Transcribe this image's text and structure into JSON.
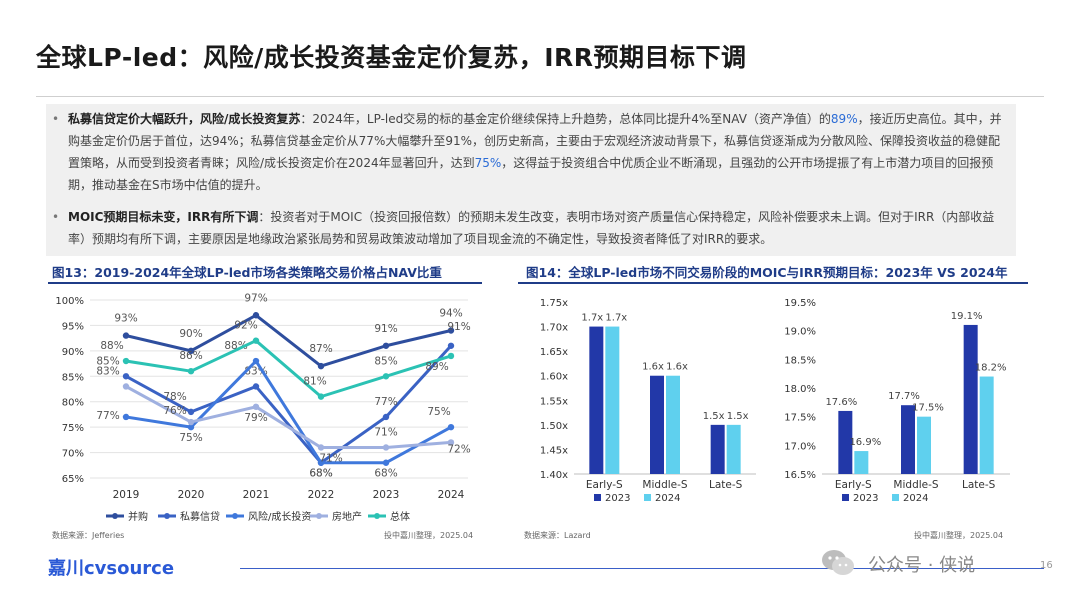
{
  "page": {
    "title": "全球LP-led：风险/成长投资基金定价复苏，IRR预期目标下调",
    "page_number": "16"
  },
  "summary": {
    "bullet1": {
      "lead": "私募信贷定价大幅跃升，风险/成长投资复苏",
      "p1": "：2024年，LP-led交易的标的基金定价继续保持上升趋势，总体同比提升4%至NAV（资产净值）的",
      "v1": "89%",
      "p2": "，接近历史高位。其中，并购基金定价仍居于首位，达94%；私募信贷基金定价从77%大幅攀升至91%，创历史新高，主要由于宏观经济波动背景下，私募信贷逐渐成为分散风险、保障投资收益的稳健配置策略，从而受到投资者青睐；风险/成长投资定价在2024年显著回升，达到",
      "v2": "75%",
      "p3": "，这得益于投资组合中优质企业不断涌现，且强劲的公开市场提振了有上市潜力项目的回报预期，推动基金在S市场中估值的提升。"
    },
    "bullet2": {
      "lead": "MOIC预期目标未变，IRR有所下调",
      "p1": "：投资者对于MOIC（投资回报倍数）的预期未发生改变，表明市场对资产质量信心保持稳定，风险补偿要求未上调。但对于IRR（内部收益率）预期均有所下调，主要原因是地缘政治紧张局势和贸易政策波动增加了项目现金流的不确定性，导致投资者降低了对IRR的要求。"
    }
  },
  "figure13": {
    "title": "图13：2019-2024年全球LP-led市场各类策略交易价格占NAV比重",
    "source": "数据来源：Jefferies",
    "credit": "投中嘉川整理，2025.04"
  },
  "figure14": {
    "title": "图14：全球LP-led市场不同交易阶段的MOIC与IRR预期目标：2023年 VS 2024年",
    "source": "数据来源：Lazard",
    "credit": "投中嘉川整理，2025.04"
  },
  "footer": {
    "logo": "嘉川cvsource",
    "watermark": "公众号 · 侠说"
  },
  "chart_data": [
    {
      "type": "line",
      "x": [
        "2019",
        "2020",
        "2021",
        "2022",
        "2023",
        "2024"
      ],
      "ylim": [
        65,
        100
      ],
      "yticks": [
        "65%",
        "70%",
        "75%",
        "80%",
        "85%",
        "90%",
        "95%",
        "100%"
      ],
      "grid": true,
      "legend_position": "bottom",
      "series": [
        {
          "name": "并购",
          "color": "#2e4e9e",
          "values": [
            93,
            90,
            97,
            87,
            91,
            94
          ],
          "labels": [
            "93%",
            "90%",
            "97%",
            "87%",
            "91%",
            "94%"
          ]
        },
        {
          "name": "私募信贷",
          "color": "#3a62c4",
          "values": [
            85,
            78,
            83,
            68,
            77,
            91
          ],
          "labels": [
            "85%",
            "78%",
            "83%",
            "68%",
            "77%",
            "91%"
          ]
        },
        {
          "name": "风险/成长投资",
          "color": "#3f78dc",
          "values": [
            77,
            75,
            88,
            68,
            68,
            75
          ],
          "labels": [
            "77%",
            "75%",
            "88%",
            "68%",
            "68%",
            "75%"
          ]
        },
        {
          "name": "房地产",
          "color": "#9fb0e0",
          "values": [
            83,
            76,
            79,
            71,
            71,
            72
          ],
          "labels": [
            "83%",
            "76%",
            "79%",
            "71%",
            "71%",
            "72%"
          ]
        },
        {
          "name": "总体",
          "color": "#2bc2b4",
          "values": [
            88,
            86,
            92,
            81,
            85,
            89
          ],
          "labels": [
            "88%",
            "86%",
            "92%",
            "81%",
            "85%",
            "89%"
          ]
        }
      ]
    },
    {
      "type": "bar",
      "categories": [
        "Early-S",
        "Middle-S",
        "Late-S"
      ],
      "ylim": [
        1.4,
        1.75
      ],
      "yticks": [
        "1.40x",
        "1.45x",
        "1.50x",
        "1.55x",
        "1.60x",
        "1.65x",
        "1.70x",
        "1.75x"
      ],
      "legend_position": "bottom",
      "series": [
        {
          "name": "2023",
          "color": "#2238a8",
          "values": [
            1.7,
            1.6,
            1.5
          ],
          "labels": [
            "1.7x",
            "1.6x",
            "1.5x"
          ]
        },
        {
          "name": "2024",
          "color": "#5fd0ee",
          "values": [
            1.7,
            1.6,
            1.5
          ],
          "labels": [
            "1.7x",
            "1.6x",
            "1.5x"
          ]
        }
      ]
    },
    {
      "type": "bar",
      "categories": [
        "Early-S",
        "Middle-S",
        "Late-S"
      ],
      "ylim": [
        16.5,
        19.5
      ],
      "yticks": [
        "16.5%",
        "17.0%",
        "17.5%",
        "18.0%",
        "18.5%",
        "19.0%",
        "19.5%"
      ],
      "legend_position": "bottom",
      "series": [
        {
          "name": "2023",
          "color": "#2238a8",
          "values": [
            17.6,
            17.7,
            19.1
          ],
          "labels": [
            "17.6%",
            "17.7%",
            "19.1%"
          ]
        },
        {
          "name": "2024",
          "color": "#5fd0ee",
          "values": [
            16.9,
            17.5,
            18.2
          ],
          "labels": [
            "16.9%",
            "17.5%",
            "18.2%"
          ]
        }
      ]
    }
  ]
}
